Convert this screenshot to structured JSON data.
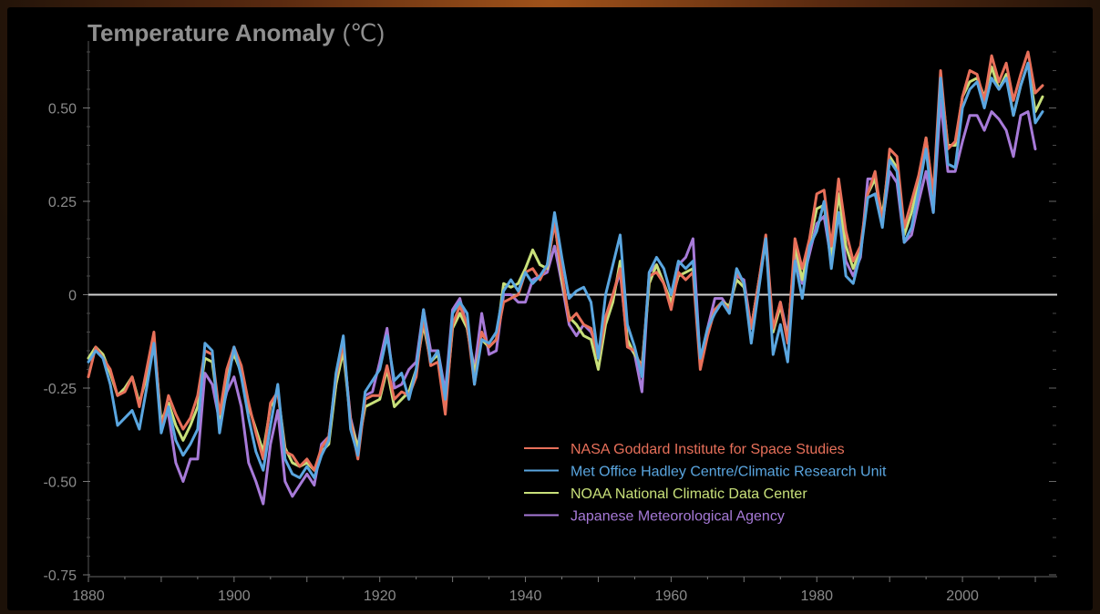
{
  "chart_data": {
    "type": "line",
    "title": "Temperature Anomaly",
    "title_unit": "(℃)",
    "xlim": [
      1880,
      2013
    ],
    "ylim": [
      -0.75,
      0.7
    ],
    "x_ticks": [
      1880,
      1900,
      1920,
      1940,
      1960,
      1980,
      2000
    ],
    "y_ticks": [
      {
        "value": 0.5,
        "label": "0.50"
      },
      {
        "value": 0.25,
        "label": "0.25"
      },
      {
        "value": 0,
        "label": "0"
      },
      {
        "value": -0.25,
        "label": "-0.25"
      },
      {
        "value": -0.5,
        "label": "-0.50"
      },
      {
        "value": -0.75,
        "label": "-0.75"
      }
    ],
    "grid": false,
    "zero_line": true,
    "legend_position": "bottom-center",
    "series": [
      {
        "name": "NASA Goddard Institute for Space Studies",
        "color": "#e8705a",
        "x_start": 1880,
        "values": [
          -0.22,
          -0.14,
          -0.17,
          -0.2,
          -0.27,
          -0.26,
          -0.22,
          -0.3,
          -0.2,
          -0.1,
          -0.36,
          -0.27,
          -0.32,
          -0.36,
          -0.33,
          -0.27,
          -0.15,
          -0.16,
          -0.32,
          -0.2,
          -0.14,
          -0.19,
          -0.29,
          -0.37,
          -0.44,
          -0.29,
          -0.26,
          -0.42,
          -0.43,
          -0.46,
          -0.44,
          -0.47,
          -0.41,
          -0.38,
          -0.22,
          -0.13,
          -0.34,
          -0.44,
          -0.28,
          -0.27,
          -0.27,
          -0.19,
          -0.28,
          -0.26,
          -0.27,
          -0.22,
          -0.06,
          -0.19,
          -0.18,
          -0.32,
          -0.08,
          -0.03,
          -0.08,
          -0.24,
          -0.1,
          -0.14,
          -0.12,
          -0.02,
          -0.01,
          0.0,
          0.06,
          0.07,
          0.04,
          0.08,
          0.19,
          0.06,
          -0.07,
          -0.05,
          -0.08,
          -0.09,
          -0.17,
          -0.06,
          0.0,
          0.07,
          -0.14,
          -0.15,
          -0.2,
          0.05,
          0.06,
          0.03,
          -0.04,
          0.06,
          0.04,
          0.06,
          -0.2,
          -0.11,
          -0.04,
          -0.02,
          -0.04,
          0.06,
          0.03,
          -0.09,
          0.03,
          0.16,
          -0.09,
          -0.02,
          -0.13,
          0.15,
          0.07,
          0.15,
          0.27,
          0.28,
          0.13,
          0.31,
          0.17,
          0.09,
          0.13,
          0.27,
          0.33,
          0.19,
          0.39,
          0.37,
          0.18,
          0.25,
          0.32,
          0.42,
          0.27,
          0.6,
          0.39,
          0.41,
          0.53,
          0.6,
          0.59,
          0.52,
          0.64,
          0.57,
          0.62,
          0.52,
          0.59,
          0.65,
          0.54,
          0.56
        ]
      },
      {
        "name": "Met Office Hadley Centre/Climatic Research Unit",
        "color": "#5aa6e0",
        "x_start": 1880,
        "values": [
          -0.18,
          -0.15,
          -0.17,
          -0.24,
          -0.35,
          -0.33,
          -0.31,
          -0.36,
          -0.25,
          -0.13,
          -0.37,
          -0.3,
          -0.39,
          -0.43,
          -0.4,
          -0.36,
          -0.13,
          -0.15,
          -0.37,
          -0.25,
          -0.14,
          -0.22,
          -0.33,
          -0.42,
          -0.47,
          -0.35,
          -0.24,
          -0.44,
          -0.48,
          -0.49,
          -0.46,
          -0.49,
          -0.43,
          -0.39,
          -0.21,
          -0.11,
          -0.36,
          -0.43,
          -0.26,
          -0.23,
          -0.2,
          -0.11,
          -0.23,
          -0.21,
          -0.28,
          -0.2,
          -0.04,
          -0.18,
          -0.15,
          -0.28,
          -0.05,
          -0.02,
          -0.05,
          -0.24,
          -0.12,
          -0.13,
          -0.1,
          0.01,
          0.04,
          0.01,
          0.06,
          0.03,
          0.05,
          0.08,
          0.22,
          0.1,
          -0.01,
          0.01,
          0.02,
          -0.02,
          -0.17,
          0.0,
          0.08,
          0.16,
          -0.08,
          -0.14,
          -0.22,
          0.06,
          0.1,
          0.07,
          0.0,
          0.09,
          0.07,
          0.09,
          -0.17,
          -0.09,
          -0.05,
          -0.02,
          -0.05,
          0.07,
          0.03,
          -0.13,
          0.01,
          0.15,
          -0.16,
          -0.08,
          -0.18,
          0.09,
          -0.01,
          0.13,
          0.17,
          0.25,
          0.07,
          0.22,
          0.05,
          0.03,
          0.11,
          0.26,
          0.27,
          0.18,
          0.36,
          0.33,
          0.14,
          0.18,
          0.28,
          0.39,
          0.22,
          0.58,
          0.35,
          0.34,
          0.5,
          0.55,
          0.57,
          0.5,
          0.58,
          0.55,
          0.58,
          0.48,
          0.56,
          0.62,
          0.46,
          0.49
        ]
      },
      {
        "name": "NOAA National Climatic Data Center",
        "color": "#c8e07a",
        "x_start": 1880,
        "values": [
          -0.17,
          -0.14,
          -0.16,
          -0.21,
          -0.27,
          -0.25,
          -0.22,
          -0.29,
          -0.22,
          -0.12,
          -0.34,
          -0.29,
          -0.35,
          -0.39,
          -0.35,
          -0.3,
          -0.17,
          -0.18,
          -0.33,
          -0.21,
          -0.16,
          -0.21,
          -0.3,
          -0.36,
          -0.42,
          -0.3,
          -0.26,
          -0.41,
          -0.45,
          -0.46,
          -0.45,
          -0.47,
          -0.42,
          -0.4,
          -0.24,
          -0.15,
          -0.34,
          -0.41,
          -0.3,
          -0.29,
          -0.28,
          -0.2,
          -0.3,
          -0.28,
          -0.26,
          -0.2,
          -0.08,
          -0.18,
          -0.16,
          -0.3,
          -0.09,
          -0.05,
          -0.09,
          -0.21,
          -0.12,
          -0.14,
          -0.12,
          0.03,
          0.02,
          0.03,
          0.07,
          0.12,
          0.08,
          0.07,
          0.2,
          0.04,
          -0.06,
          -0.08,
          -0.11,
          -0.12,
          -0.2,
          -0.08,
          -0.02,
          0.09,
          -0.12,
          -0.16,
          -0.19,
          0.03,
          0.08,
          0.03,
          -0.02,
          0.05,
          0.06,
          0.07,
          -0.17,
          -0.1,
          -0.04,
          -0.02,
          -0.03,
          0.04,
          0.02,
          -0.09,
          0.03,
          0.14,
          -0.1,
          -0.03,
          -0.12,
          0.13,
          0.04,
          0.14,
          0.23,
          0.24,
          0.1,
          0.27,
          0.13,
          0.07,
          0.12,
          0.27,
          0.31,
          0.21,
          0.37,
          0.34,
          0.16,
          0.22,
          0.3,
          0.42,
          0.26,
          0.58,
          0.4,
          0.4,
          0.53,
          0.57,
          0.58,
          0.53,
          0.61,
          0.55,
          0.59,
          0.48,
          0.56,
          0.62,
          0.49,
          0.53
        ]
      },
      {
        "name": "Japanese Meteorological Agency",
        "color": "#a77ad8",
        "x_start": 1891,
        "values": [
          -0.32,
          -0.45,
          -0.5,
          -0.44,
          -0.44,
          -0.21,
          -0.24,
          -0.34,
          -0.26,
          -0.22,
          -0.3,
          -0.45,
          -0.5,
          -0.56,
          -0.4,
          -0.31,
          -0.5,
          -0.54,
          -0.51,
          -0.48,
          -0.51,
          -0.4,
          -0.38,
          -0.24,
          -0.14,
          -0.33,
          -0.41,
          -0.27,
          -0.26,
          -0.18,
          -0.09,
          -0.25,
          -0.24,
          -0.2,
          -0.18,
          -0.04,
          -0.15,
          -0.15,
          -0.26,
          -0.04,
          -0.01,
          -0.09,
          -0.2,
          -0.05,
          -0.16,
          -0.15,
          0.0,
          0.0,
          -0.02,
          -0.02,
          0.04,
          0.05,
          0.06,
          0.13,
          0.03,
          -0.08,
          -0.11,
          -0.08,
          -0.1,
          -0.15,
          -0.06,
          0.0,
          0.06,
          -0.13,
          -0.16,
          -0.26,
          0.06,
          0.08,
          0.03,
          -0.03,
          0.08,
          0.1,
          0.15,
          -0.18,
          -0.09,
          -0.01,
          -0.01,
          -0.04,
          0.05,
          0.04,
          -0.09,
          0.03,
          0.15,
          -0.1,
          -0.02,
          -0.11,
          0.12,
          0.03,
          0.11,
          0.19,
          0.21,
          0.09,
          0.22,
          0.09,
          0.05,
          0.1,
          0.31,
          0.31,
          0.19,
          0.33,
          0.3,
          0.14,
          0.16,
          0.25,
          0.33,
          0.22,
          0.52,
          0.33,
          0.33,
          0.41,
          0.48,
          0.48,
          0.44,
          0.49,
          0.47,
          0.44,
          0.37,
          0.48,
          0.49,
          0.39
        ]
      }
    ]
  }
}
